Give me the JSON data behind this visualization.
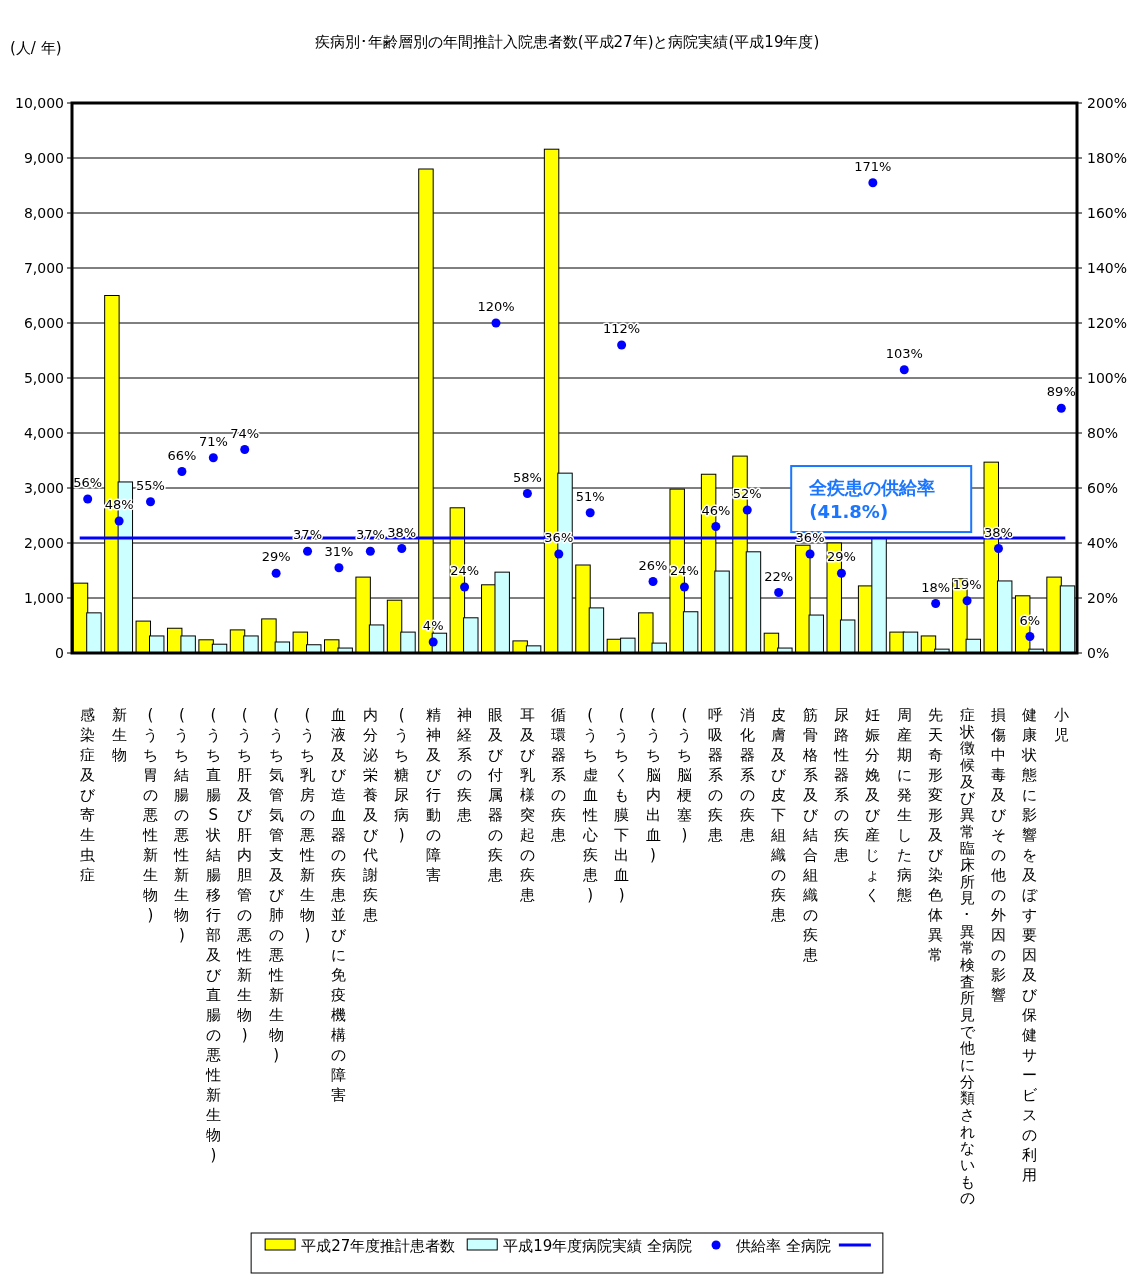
{
  "chart_data": {
    "type": "bar",
    "title": "疾病別･年齢層別の年間推計入院患者数(平成27年)と病院実績(平成19年度)",
    "ylabel": "(人/ 年)",
    "categories": [
      "感染症及び寄生虫症",
      "新生物",
      "(うち胃の悪性新生物)",
      "(うち結腸の悪性新生物)",
      "(うち直腸S状結腸移行部及び直腸の悪性新生物)",
      "(うち肝及び肝内胆管の悪性新生物)",
      "(うち気管気管支及び肺の悪性新生物)",
      "(うち乳房の悪性新生物)",
      "血液及び造血器の疾患並びに免疫機構の障害",
      "内分泌栄養及び代謝疾患",
      "(うち糖尿病)",
      "精神及び行動の障害",
      "神経系の疾患",
      "眼及び付属器の疾患",
      "耳及び乳様突起の疾患",
      "循環器系の疾患",
      "(うち虚血性心疾患)",
      "(うちくも膜下出血)",
      "(うち脳内出血)",
      "(うち脳梗塞)",
      "呼吸器系の疾患",
      "消化器系の疾患",
      "皮膚及び皮下組織の疾患",
      "筋骨格系及び結合組織の疾患",
      "尿路性器系の疾患",
      "妊娠分娩及び産じょく",
      "周産期に発生した病態",
      "先天奇形変形及び染色体異常",
      "症状徴候及び異常臨床所見･異常検査所見で他に分類されないもの",
      "損傷中毒及びその他の外因の影響",
      "健康状態に影響を及ぼす要因及び保健サービスの利用",
      "小児"
    ],
    "series": [
      {
        "name": "平成27年度推計患者数",
        "color": "#ffff00",
        "values": [
          1270,
          6500,
          580,
          450,
          240,
          420,
          620,
          380,
          240,
          1380,
          960,
          8800,
          2640,
          1240,
          220,
          9160,
          1600,
          250,
          730,
          2980,
          3250,
          3580,
          360,
          1960,
          2000,
          1220,
          380,
          310,
          1350,
          3470,
          1040,
          1380
        ]
      },
      {
        "name": "平成19年度病院実績 全病院",
        "color": "#ccffff",
        "values": [
          730,
          3110,
          310,
          310,
          160,
          310,
          200,
          150,
          90,
          510,
          380,
          360,
          640,
          1470,
          130,
          3270,
          820,
          270,
          180,
          750,
          1490,
          1840,
          90,
          690,
          600,
          2090,
          380,
          70,
          250,
          1310,
          70,
          1220
        ]
      },
      {
        "name": "供給率 全病院",
        "type": "scatter",
        "axis": "y2",
        "color": "#0000ff",
        "marker": "circle",
        "values": [
          56,
          48,
          55,
          66,
          71,
          74,
          29,
          37,
          31,
          37,
          38,
          4,
          24,
          120,
          58,
          36,
          51,
          112,
          26,
          24,
          46,
          52,
          22,
          36,
          29,
          171,
          103,
          18,
          19,
          38,
          6,
          89
        ],
        "value_labels": [
          "56%",
          "48%",
          "55%",
          "66%",
          "71%",
          "74%",
          "29%",
          "37%",
          "31%",
          "37%",
          "38%",
          "4%",
          "24%",
          "120%",
          "58%",
          "36%",
          "51%",
          "112%",
          "26%",
          "24%",
          "46%",
          "52%",
          "22%",
          "36%",
          "29%",
          "171%",
          "103%",
          "18%",
          "19%",
          "38%",
          "6%",
          "89%"
        ]
      }
    ],
    "ylim": [
      0,
      10000
    ],
    "yticks": [
      0,
      {
        "value": 1000,
        "label": "1,000"
      },
      {
        "value": 2000,
        "label": "2,000"
      },
      {
        "value": 3000,
        "label": "3,000"
      },
      {
        "value": 4000,
        "label": "4,000"
      },
      {
        "value": 5000,
        "label": "5,000"
      },
      {
        "value": 6000,
        "label": "6,000"
      },
      {
        "value": 7000,
        "label": "7,000"
      },
      {
        "value": 8000,
        "label": "8,000"
      },
      {
        "value": 9000,
        "label": "9,000"
      },
      {
        "value": 10000,
        "label": "10,000"
      }
    ],
    "y2lim": [
      0,
      200
    ],
    "y2ticks": [
      {
        "value": 0,
        "label": "0%"
      },
      {
        "value": 20,
        "label": "20%"
      },
      {
        "value": 40,
        "label": "40%"
      },
      {
        "value": 60,
        "label": "60%"
      },
      {
        "value": 80,
        "label": "80%"
      },
      {
        "value": 100,
        "label": "100%"
      },
      {
        "value": 120,
        "label": "120%"
      },
      {
        "value": 140,
        "label": "140%"
      },
      {
        "value": 160,
        "label": "160%"
      },
      {
        "value": 180,
        "label": "180%"
      },
      {
        "value": 200,
        "label": "200%"
      }
    ],
    "ref_lines": [
      {
        "axis": "y2",
        "value": 41.8,
        "label": "全疾患の供給率 (41.8%)",
        "color": "#0000ff"
      }
    ],
    "grid": "y",
    "legend": "bottom"
  }
}
